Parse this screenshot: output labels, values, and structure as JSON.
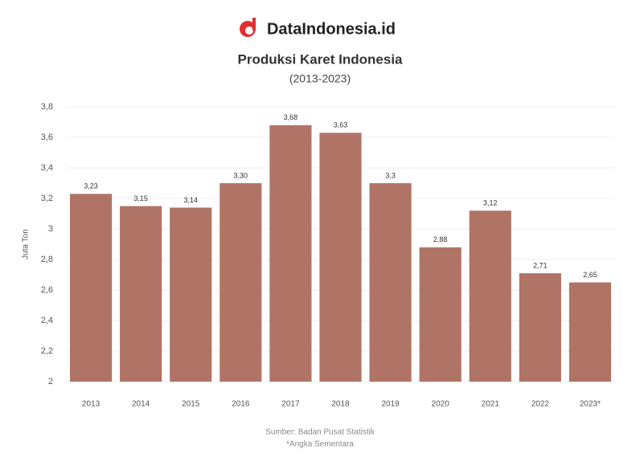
{
  "brand": "DataIndonesia.id",
  "chart_data": {
    "type": "bar",
    "title": "Produksi Karet Indonesia",
    "subtitle": "(2013-2023)",
    "y_label": "Juta Ton",
    "categories": [
      "2013",
      "2014",
      "2015",
      "2016",
      "2017",
      "2018",
      "2019",
      "2020",
      "2021",
      "2022",
      "2023*"
    ],
    "values": [
      3.23,
      3.15,
      3.14,
      3.3,
      3.68,
      3.63,
      3.3,
      2.88,
      3.12,
      2.71,
      2.65
    ],
    "value_labels": [
      "3,23",
      "3,15",
      "3,14",
      "3,30",
      "3,68",
      "3,63",
      "3,3",
      "2,88",
      "3,12",
      "2,71",
      "2,65"
    ],
    "color": "#b07466",
    "ylim": [
      2,
      3.8
    ],
    "yticks": [
      2,
      {
        "value": 2.2,
        "label": "2,2"
      },
      {
        "value": 2.4,
        "label": "2,4"
      },
      {
        "value": 2.6,
        "label": "2,6"
      },
      {
        "value": 2.8,
        "label": "2,8"
      },
      3,
      {
        "value": 3.2,
        "label": "3,2"
      },
      {
        "value": 3.4,
        "label": "3,4"
      },
      {
        "value": 3.6,
        "label": "3,6"
      },
      {
        "value": 3.8,
        "label": "3,8"
      }
    ],
    "grid": true,
    "source": "Sumber: Badan Pusat Statistik",
    "note": "*Angka Sementara"
  }
}
